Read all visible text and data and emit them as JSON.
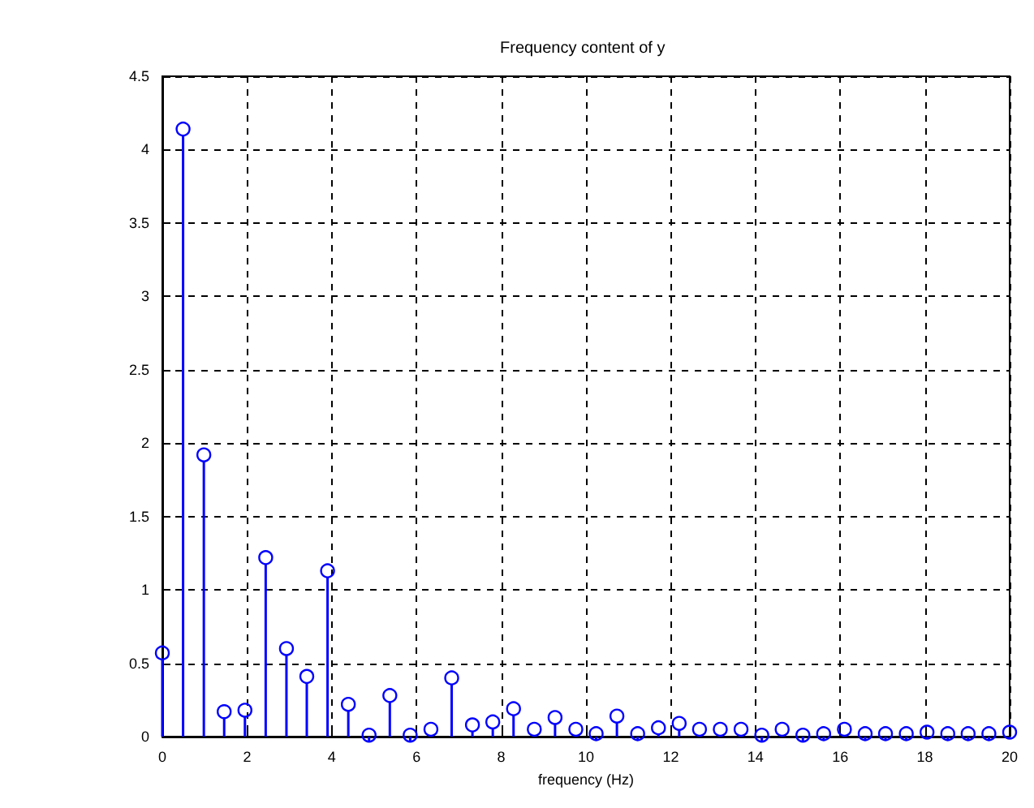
{
  "chart_data": {
    "type": "lollipop",
    "title": "Frequency content of y",
    "xlabel": "frequency (Hz)",
    "x": [
      0,
      0.49,
      0.98,
      1.46,
      1.95,
      2.44,
      2.93,
      3.41,
      3.9,
      4.39,
      4.88,
      5.37,
      5.85,
      6.34,
      6.83,
      7.32,
      7.8,
      8.29,
      8.78,
      9.27,
      9.76,
      10.24,
      10.73,
      11.22,
      11.71,
      12.2,
      12.68,
      13.17,
      13.66,
      14.15,
      14.63,
      15.12,
      15.61,
      16.1,
      16.59,
      17.07,
      17.56,
      18.05,
      18.54,
      19.02,
      19.51,
      20
    ],
    "series": [
      {
        "color": "#0000ff",
        "values": [
          0.57,
          4.14,
          1.92,
          0.17,
          0.18,
          1.22,
          0.6,
          0.41,
          1.13,
          0.22,
          0.01,
          0.28,
          0.01,
          0.05,
          0.4,
          0.08,
          0.1,
          0.19,
          0.05,
          0.13,
          0.05,
          0.02,
          0.14,
          0.02,
          0.06,
          0.09,
          0.05,
          0.05,
          0.05,
          0.01,
          0.05,
          0.01,
          0.02,
          0.05,
          0.02,
          0.02,
          0.02,
          0.03,
          0.02,
          0.02,
          0.02,
          0.03
        ]
      }
    ],
    "xlim": [
      0,
      20
    ],
    "xticks": [
      0,
      2,
      4,
      6,
      8,
      10,
      12,
      14,
      16,
      18,
      20
    ],
    "ylim": [
      0,
      4.5
    ],
    "yticks": [
      0,
      0.5,
      1,
      1.5,
      2,
      2.5,
      3,
      3.5,
      4,
      4.5
    ],
    "grid": true,
    "marker": "circle"
  }
}
